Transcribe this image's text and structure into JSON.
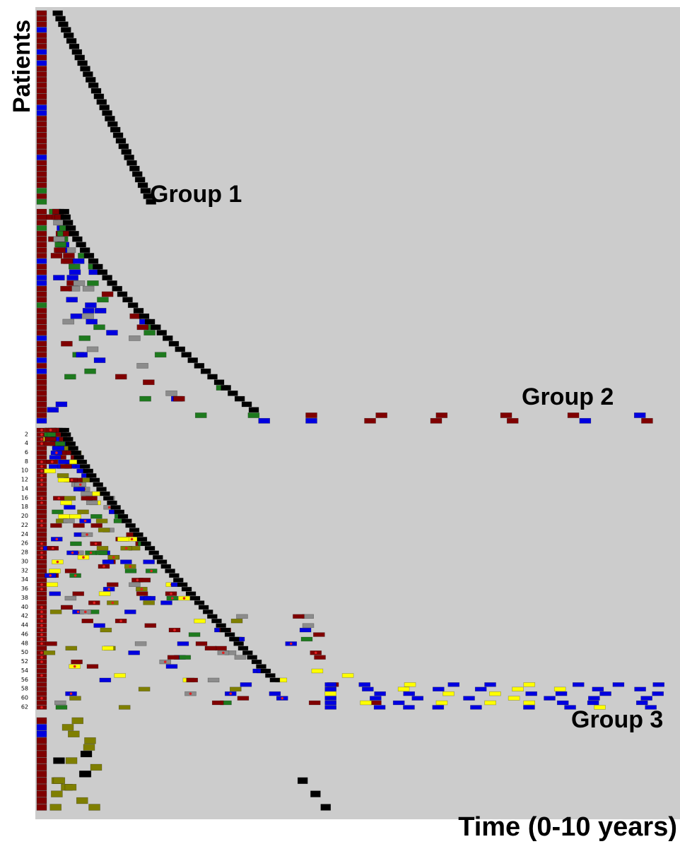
{
  "chart_data": {
    "type": "timeline",
    "ylabel": "Patients",
    "xlabel": "Time (0-10 years)",
    "groups": [
      {
        "name": "Group 1",
        "patients": 35,
        "pattern": "single baseline event followed by death (black) within ~1.7 years"
      },
      {
        "name": "Group 2",
        "patients": 39,
        "pattern": "multiple events before death; several patients followed up to ~10 years"
      },
      {
        "name": "Group 3",
        "patients": 62,
        "row_tick_labels": [
          "2",
          "4",
          "6",
          "8",
          "10",
          "12",
          "14",
          "16",
          "18",
          "20",
          "22",
          "24",
          "26",
          "28",
          "30",
          "32",
          "34",
          "36",
          "38",
          "40",
          "42",
          "44",
          "46",
          "48",
          "50",
          "52",
          "54",
          "56",
          "58",
          "60",
          "62"
        ],
        "pattern": "many events including yellow and olive events, red dots marking events, followed up to ~10 years"
      },
      {
        "name": "",
        "patients": 14,
        "pattern": "baseline event with olive/black events, unlabeled cluster"
      }
    ],
    "legend_colors": {
      "dark_red": "#800000",
      "blue": "#0000e0",
      "black": "#000000",
      "green": "#1e7a1e",
      "gray": "#8c8c8c",
      "yellow": "#ffff00",
      "olive": "#7f7f00"
    },
    "background": "#cccccc",
    "x_range_years": [
      0,
      10
    ]
  }
}
